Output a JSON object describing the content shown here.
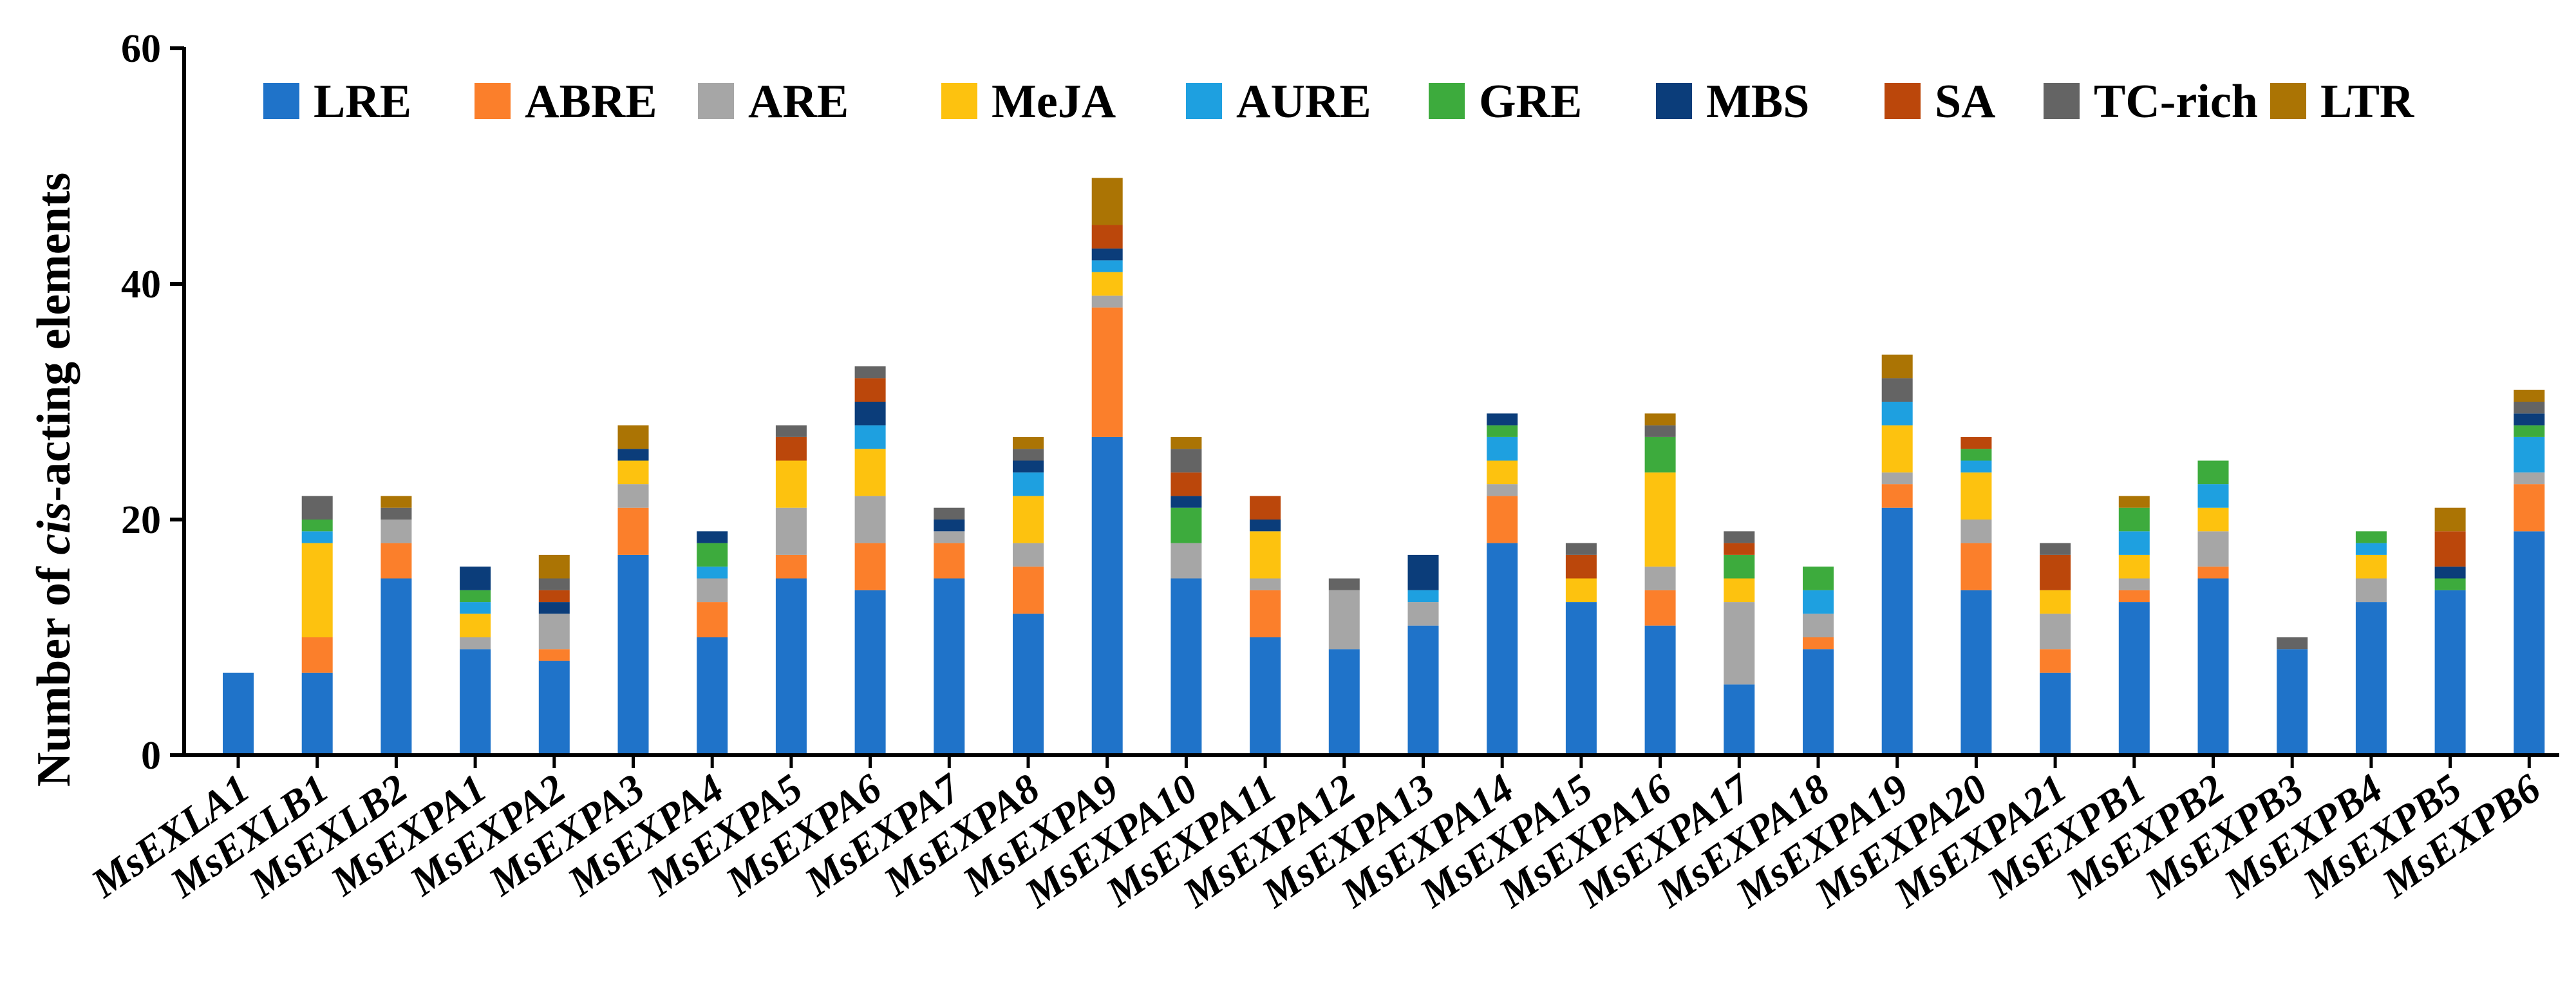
{
  "chart_data": {
    "type": "stacked-bar",
    "title": "",
    "xlabel": "",
    "ylabel_prefix": "Number of ",
    "ylabel_italic": "cis",
    "ylabel_suffix": "-acting elements",
    "ylim": [
      0,
      60
    ],
    "yticks": [
      0,
      20,
      40,
      60
    ],
    "legend_position": "top",
    "categories": [
      "MsEXLA1",
      "MsEXLB1",
      "MsEXLB2",
      "MsEXPA1",
      "MsEXPA2",
      "MsEXPA3",
      "MsEXPA4",
      "MsEXPA5",
      "MsEXPA6",
      "MsEXPA7",
      "MsEXPA8",
      "MsEXPA9",
      "MsEXPA10",
      "MsEXPA11",
      "MsEXPA12",
      "MsEXPA13",
      "MsEXPA14",
      "MsEXPA15",
      "MsEXPA16",
      "MsEXPA17",
      "MsEXPA18",
      "MsEXPA19",
      "MsEXPA20",
      "MsEXPA21",
      "MsEXPB1",
      "MsEXPB2",
      "MsEXPB3",
      "MsEXPB4",
      "MsEXPB5",
      "MsEXPB6"
    ],
    "series": [
      {
        "name": "LRE",
        "color": "#1f73c9",
        "values": [
          7,
          7,
          15,
          9,
          8,
          17,
          10,
          15,
          14,
          15,
          12,
          27,
          15,
          10,
          9,
          11,
          18,
          13,
          11,
          6,
          9,
          21,
          14,
          7,
          13,
          15,
          9,
          13,
          14,
          19
        ]
      },
      {
        "name": "ABRE",
        "color": "#fb7f2b",
        "values": [
          0,
          3,
          3,
          0,
          1,
          4,
          3,
          2,
          4,
          3,
          4,
          11,
          0,
          4,
          0,
          0,
          4,
          0,
          3,
          0,
          1,
          2,
          4,
          2,
          1,
          1,
          0,
          0,
          0,
          4
        ]
      },
      {
        "name": "ARE",
        "color": "#a6a6a6",
        "values": [
          0,
          0,
          2,
          1,
          3,
          2,
          2,
          4,
          4,
          1,
          2,
          1,
          3,
          1,
          5,
          2,
          1,
          0,
          2,
          7,
          2,
          1,
          2,
          3,
          1,
          3,
          0,
          2,
          0,
          1
        ]
      },
      {
        "name": "MeJA",
        "color": "#fdc20f",
        "values": [
          0,
          8,
          0,
          2,
          0,
          2,
          0,
          4,
          4,
          0,
          4,
          2,
          0,
          4,
          0,
          0,
          2,
          2,
          8,
          2,
          0,
          4,
          4,
          2,
          2,
          2,
          0,
          2,
          0,
          0
        ]
      },
      {
        "name": "AURE",
        "color": "#1ea0e0",
        "values": [
          0,
          1,
          0,
          1,
          0,
          0,
          1,
          0,
          2,
          0,
          2,
          1,
          0,
          0,
          0,
          1,
          2,
          0,
          0,
          0,
          2,
          2,
          1,
          0,
          2,
          2,
          0,
          1,
          0,
          3
        ]
      },
      {
        "name": "GRE",
        "color": "#3dab3d",
        "values": [
          0,
          1,
          0,
          1,
          0,
          0,
          2,
          0,
          0,
          0,
          0,
          0,
          3,
          0,
          0,
          0,
          1,
          0,
          3,
          2,
          2,
          0,
          1,
          0,
          2,
          2,
          0,
          1,
          1,
          1
        ]
      },
      {
        "name": "MBS",
        "color": "#0b3d7a",
        "values": [
          0,
          0,
          0,
          2,
          1,
          1,
          1,
          0,
          2,
          1,
          1,
          1,
          1,
          1,
          0,
          3,
          1,
          0,
          0,
          0,
          0,
          0,
          0,
          0,
          0,
          0,
          0,
          0,
          1,
          1
        ]
      },
      {
        "name": "SA",
        "color": "#bb470b",
        "values": [
          0,
          0,
          0,
          0,
          1,
          0,
          0,
          2,
          2,
          0,
          0,
          2,
          2,
          2,
          0,
          0,
          0,
          2,
          0,
          1,
          0,
          0,
          1,
          3,
          0,
          0,
          0,
          0,
          3,
          0
        ]
      },
      {
        "name": "TC-rich",
        "color": "#646464",
        "values": [
          0,
          2,
          1,
          0,
          1,
          0,
          0,
          1,
          1,
          1,
          1,
          0,
          2,
          0,
          1,
          0,
          0,
          1,
          1,
          1,
          0,
          2,
          0,
          1,
          0,
          0,
          1,
          0,
          0,
          1
        ]
      },
      {
        "name": "LTR",
        "color": "#ab7404",
        "values": [
          0,
          0,
          1,
          0,
          2,
          2,
          0,
          0,
          0,
          0,
          1,
          4,
          1,
          0,
          0,
          0,
          0,
          0,
          1,
          0,
          0,
          2,
          0,
          0,
          1,
          0,
          0,
          0,
          2,
          1
        ]
      }
    ]
  }
}
